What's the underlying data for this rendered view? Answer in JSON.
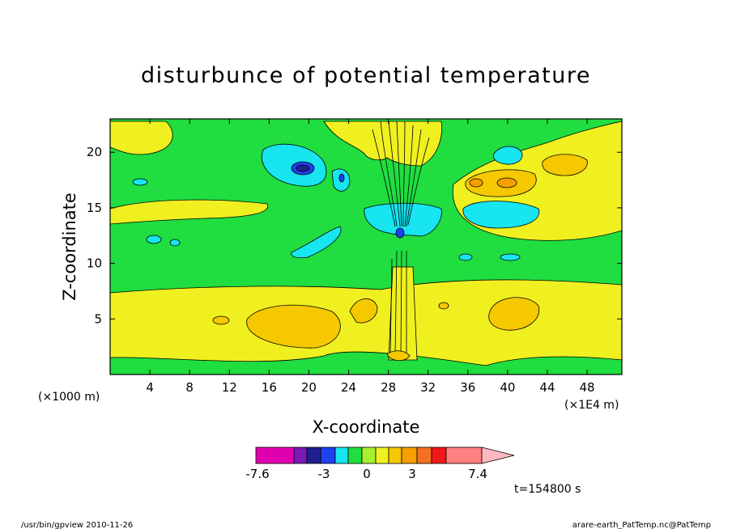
{
  "chart_data": {
    "type": "heatmap",
    "title": "disturbunce of potential temperature",
    "xlabel": "X-coordinate",
    "ylabel": "Z-coordinate",
    "x_unit_left": "(×1000 m)",
    "x_unit_right": "(×1E4 m)",
    "xlim": [
      0,
      51.5
    ],
    "ylim": [
      0,
      23
    ],
    "x_ticks": [
      4,
      8,
      12,
      16,
      20,
      24,
      28,
      32,
      36,
      40,
      44,
      48
    ],
    "y_ticks": [
      5,
      10,
      15,
      20
    ],
    "colorbar": {
      "labels": [
        "-7.6",
        "-3",
        "0",
        "3",
        "7.4"
      ],
      "colors": [
        "#e000b0",
        "#7a18b8",
        "#20208f",
        "#1d40f0",
        "#17e5f0",
        "#20dd40",
        "#a8ee30",
        "#f0f020",
        "#f5c800",
        "#f5a000",
        "#f57020",
        "#f01818",
        "#ff8080",
        "#ffb8c0"
      ]
    },
    "time_label": "t=154800 s",
    "footer_left": "/usr/bin/gpview  2010-11-26",
    "footer_right": "arare-earth_PatTemp.nc@PatTemp"
  }
}
